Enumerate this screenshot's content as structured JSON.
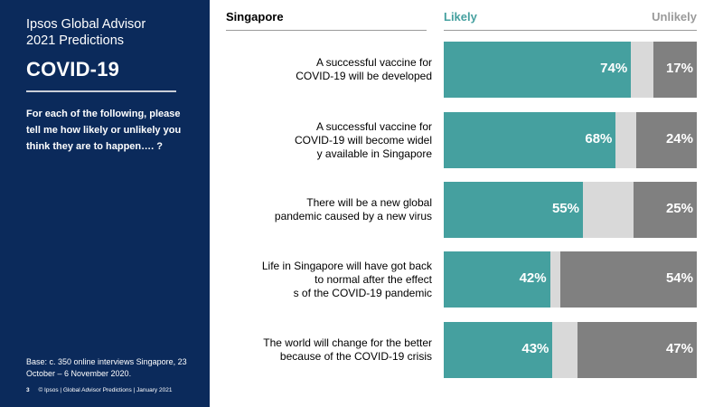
{
  "sidebar": {
    "title_line1": "Ipsos Global Advisor",
    "title_line2": "2021 Predictions",
    "heading": "COVID-19",
    "question": "For each of the following, please tell me how likely or unlikely you think they are to happen…. ?",
    "base": "Base: c. 350 online interviews Singapore,  23 October – 6 November 2020.",
    "page_number": "3",
    "footer": "© Ipsos | Global Advisor Predictions | January 2021"
  },
  "colors": {
    "likely": "#45a09f",
    "neutral": "#d9d9d9",
    "unlikely": "#808080",
    "sidebar": "#0b2a5b"
  },
  "chart_data": {
    "type": "bar",
    "orientation": "horizontal-stacked",
    "region": "Singapore",
    "legend": [
      "Likely",
      "Unlikely"
    ],
    "categories": [
      "A successful vaccine for COVID-19 will be developed",
      "A successful vaccine for COVID-19 will become widely available in Singapore",
      "There will be a new global pandemic caused by a new virus",
      "Life in Singapore will have got back to normal after the effects of the COVID-19 pandemic",
      "The world will change for the better because of the COVID-19 crisis"
    ],
    "series": [
      {
        "name": "Likely",
        "values": [
          74,
          68,
          55,
          42,
          43
        ]
      },
      {
        "name": "Unlikely",
        "values": [
          17,
          24,
          25,
          54,
          47
        ]
      }
    ],
    "value_labels": {
      "likely": [
        "74%",
        "68%",
        "55%",
        "42%",
        "43%"
      ],
      "unlikely": [
        "17%",
        "24%",
        "25%",
        "54%",
        "47%"
      ]
    },
    "xlim": [
      0,
      100
    ]
  }
}
